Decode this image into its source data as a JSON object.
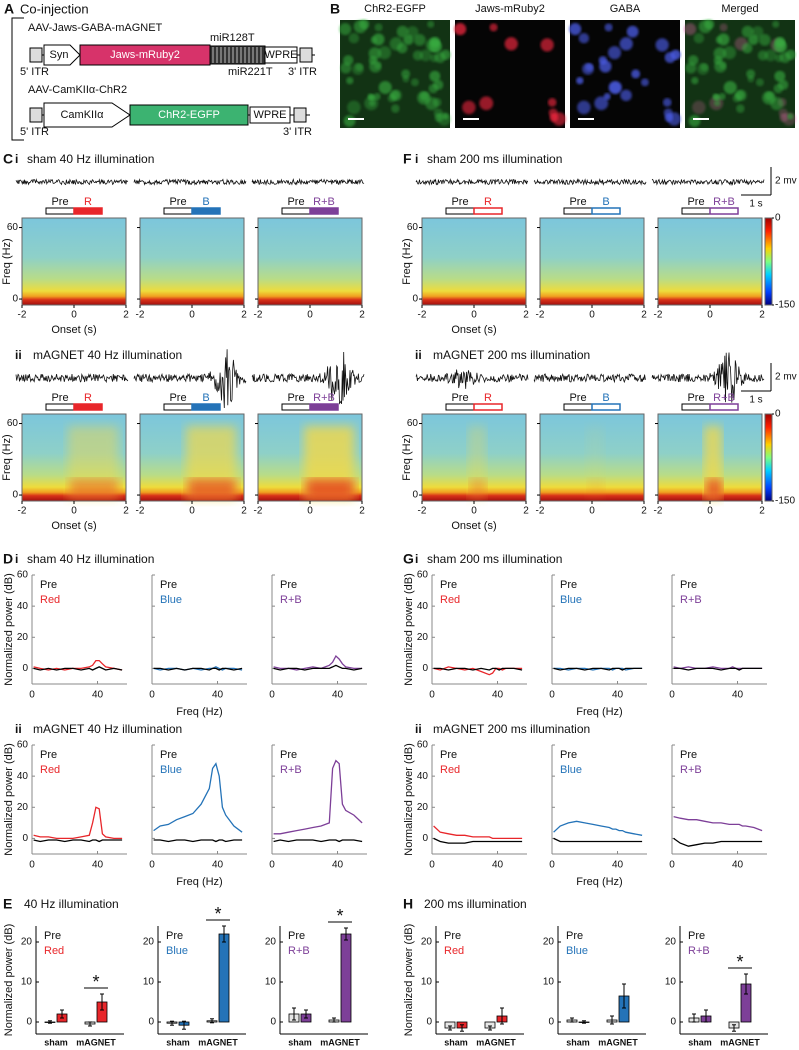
{
  "panel_a": {
    "letter": "A",
    "title": "Co-injection",
    "construct_1": {
      "name": "AAV-Jaws-GABA-mAGNET",
      "promoter": "Syn",
      "gene": "Jaws-mRuby2",
      "target_1": "miR128T",
      "target_2": "miR221T",
      "wpre": "WPRE",
      "itr_5": "5' ITR",
      "itr_3": "3' ITR"
    },
    "construct_2": {
      "name": "AAV-CamKIIα-ChR2",
      "promoter": "CamKIIα",
      "gene": "ChR2-EGFP",
      "wpre": "WPRE",
      "itr_5": "5' ITR",
      "itr_3": "3' ITR"
    }
  },
  "panel_b": {
    "letter": "B",
    "channels": [
      {
        "label": "ChR2-EGFP",
        "color": "#3fbf4a"
      },
      {
        "label": "Jaws-mRuby2",
        "color": "#e8263c"
      },
      {
        "label": "GABA",
        "color": "#4a5ae0"
      },
      {
        "label": "Merged",
        "color": "#3fbf4a"
      }
    ]
  },
  "spectro": [
    {
      "letter": "C",
      "stim_filled": true,
      "ylabel": "Freq (Hz)",
      "xlabel": "Onset (s)",
      "xlim": [
        -2,
        2
      ],
      "ylim": [
        -5,
        68
      ],
      "xticks": [
        -2,
        0,
        2
      ],
      "yticks": [
        0,
        60
      ],
      "rows": [
        {
          "roman": "i",
          "title": "sham 40 Hz illumination",
          "plots": [
            {
              "pre": "Pre",
              "stim": "R",
              "color": "#e8262a"
            },
            {
              "pre": "Pre",
              "stim": "B",
              "color": "#2473b8"
            },
            {
              "pre": "Pre",
              "stim": "R+B",
              "color": "#7d3f98"
            }
          ]
        },
        {
          "roman": "ii",
          "title": "mAGNET 40 Hz illumination",
          "plots": [
            {
              "pre": "Pre",
              "stim": "R",
              "color": "#e8262a"
            },
            {
              "pre": "Pre",
              "stim": "B",
              "color": "#2473b8"
            },
            {
              "pre": "Pre",
              "stim": "R+B",
              "color": "#7d3f98"
            }
          ]
        }
      ]
    },
    {
      "letter": "F",
      "stim_filled": false,
      "ylabel": "Freq (Hz)",
      "xlabel": "Onset (s)",
      "xlim": [
        -2,
        2
      ],
      "ylim": [
        -5,
        68
      ],
      "xticks": [
        -2,
        0,
        2
      ],
      "yticks": [
        0,
        60
      ],
      "scale_bar": {
        "amplitude": "2 mv",
        "time": "1 s"
      },
      "colorbar": {
        "range": [
          -150,
          0
        ],
        "ticks": [
          0,
          -150
        ]
      },
      "rows": [
        {
          "roman": "i",
          "title": "sham 200 ms illumination",
          "plots": [
            {
              "pre": "Pre",
              "stim": "R",
              "color": "#e8262a"
            },
            {
              "pre": "Pre",
              "stim": "B",
              "color": "#2473b8"
            },
            {
              "pre": "Pre",
              "stim": "R+B",
              "color": "#7d3f98"
            }
          ]
        },
        {
          "roman": "ii",
          "title": "mAGNET 200 ms illumination",
          "plots": [
            {
              "pre": "Pre",
              "stim": "R",
              "color": "#e8262a"
            },
            {
              "pre": "Pre",
              "stim": "B",
              "color": "#2473b8"
            },
            {
              "pre": "Pre",
              "stim": "R+B",
              "color": "#7d3f98"
            }
          ]
        }
      ]
    }
  ],
  "power": [
    {
      "letter": "D",
      "x": [
        1,
        5,
        10,
        15,
        20,
        25,
        30,
        35,
        37,
        39,
        41,
        43,
        45,
        50,
        55
      ],
      "xlim": [
        0,
        58
      ],
      "ylim": [
        -10,
        60
      ],
      "xticks": [
        0,
        40
      ],
      "yticks": [
        0,
        20,
        40,
        60
      ],
      "ylabel": "Normalized power (dB)",
      "xlabel": "Freq (Hz)",
      "pre_color": "#000000",
      "rows": [
        {
          "roman": "i",
          "title": "sham 40 Hz illumination",
          "plots": [
            {
              "pre_label": "Pre",
              "label": "Red",
              "color": "#e8262a",
              "pre": [
                0,
                -1,
                0,
                -1,
                0,
                0,
                -1,
                0,
                -1,
                0,
                1,
                0,
                -1,
                0,
                -1
              ],
              "values": [
                1,
                0,
                -1,
                0,
                -1,
                0,
                0,
                1,
                2,
                5,
                5,
                3,
                1,
                0,
                -1
              ]
            },
            {
              "pre_label": "Pre",
              "label": "Blue",
              "color": "#2473b8",
              "pre": [
                0,
                0,
                -1,
                0,
                -1,
                0,
                0,
                -1,
                0,
                0,
                -1,
                0,
                0,
                -1,
                0
              ],
              "values": [
                0,
                -1,
                0,
                0,
                -1,
                0,
                -1,
                0,
                0,
                1,
                0,
                -1,
                0,
                0,
                -1
              ]
            },
            {
              "pre_label": "Pre",
              "label": "R+B",
              "color": "#7d3f98",
              "pre": [
                0,
                -1,
                0,
                0,
                -1,
                0,
                0,
                0,
                1,
                2,
                1,
                0,
                0,
                -1,
                0
              ],
              "values": [
                1,
                0,
                0,
                -1,
                0,
                1,
                0,
                2,
                4,
                8,
                6,
                3,
                1,
                0,
                0
              ]
            }
          ]
        },
        {
          "roman": "ii",
          "title": "mAGNET 40 Hz illumination",
          "plots": [
            {
              "pre_label": "Pre",
              "label": "Red",
              "color": "#e8262a",
              "pre": [
                -1,
                -2,
                -1,
                -1,
                -2,
                -1,
                -1,
                -2,
                -1,
                -1,
                -2,
                -1,
                -1,
                -1,
                -1
              ],
              "values": [
                2,
                1,
                1,
                0,
                0,
                0,
                1,
                2,
                10,
                20,
                19,
                3,
                1,
                0,
                0
              ]
            },
            {
              "pre_label": "Pre",
              "label": "Blue",
              "color": "#2473b8",
              "pre": [
                -1,
                -1,
                -2,
                -1,
                -1,
                -2,
                -1,
                -1,
                -1,
                -2,
                -1,
                -1,
                -2,
                -1,
                -1
              ],
              "values": [
                5,
                8,
                9,
                12,
                14,
                16,
                22,
                32,
                45,
                48,
                40,
                20,
                15,
                8,
                4
              ]
            },
            {
              "pre_label": "Pre",
              "label": "R+B",
              "color": "#7d3f98",
              "pre": [
                -2,
                -1,
                -2,
                -1,
                -1,
                -1,
                -2,
                -1,
                -1,
                -1,
                -2,
                -1,
                -1,
                -1,
                -2
              ],
              "values": [
                3,
                3,
                4,
                5,
                6,
                7,
                8,
                10,
                45,
                50,
                48,
                22,
                18,
                15,
                10
              ]
            }
          ]
        }
      ]
    },
    {
      "letter": "G",
      "x": [
        1,
        5,
        10,
        15,
        20,
        25,
        30,
        35,
        37,
        39,
        41,
        43,
        45,
        50,
        55
      ],
      "xlim": [
        0,
        58
      ],
      "ylim": [
        -10,
        60
      ],
      "xticks": [
        0,
        40
      ],
      "yticks": [
        0,
        20,
        40,
        60
      ],
      "ylabel": "Normalized power (dB)",
      "xlabel": "Freq (Hz)",
      "pre_color": "#000000",
      "rows": [
        {
          "roman": "i",
          "title": "sham 200 ms illumination",
          "plots": [
            {
              "pre_label": "Pre",
              "label": "Red",
              "color": "#e8262a",
              "pre": [
                0,
                0,
                -1,
                0,
                0,
                -1,
                0,
                -1,
                0,
                0,
                -1,
                0,
                0,
                0,
                -1
              ],
              "values": [
                0,
                -1,
                1,
                0,
                -1,
                0,
                -2,
                -4,
                -3,
                0,
                0,
                -1,
                0,
                0,
                0
              ]
            },
            {
              "pre_label": "Pre",
              "label": "Blue",
              "color": "#2473b8",
              "pre": [
                0,
                -1,
                0,
                0,
                -1,
                0,
                0,
                -1,
                0,
                0,
                0,
                -1,
                0,
                0,
                0
              ],
              "values": [
                0,
                0,
                -1,
                0,
                0,
                -1,
                0,
                0,
                -1,
                0,
                0,
                0,
                -1,
                0,
                0
              ]
            },
            {
              "pre_label": "Pre",
              "label": "R+B",
              "color": "#7d3f98",
              "pre": [
                0,
                0,
                -1,
                0,
                0,
                0,
                -1,
                0,
                0,
                0,
                -1,
                0,
                0,
                0,
                0
              ],
              "values": [
                1,
                0,
                1,
                0,
                0,
                1,
                0,
                0,
                1,
                0,
                0,
                0,
                0,
                0,
                0
              ]
            }
          ]
        },
        {
          "roman": "ii",
          "title": "mAGNET 200 ms illumination",
          "plots": [
            {
              "pre_label": "Pre",
              "label": "Red",
              "color": "#e8262a",
              "pre": [
                0,
                -2,
                -3,
                -3,
                -3,
                -2,
                -2,
                -2,
                -2,
                -2,
                -2,
                -2,
                -2,
                -2,
                -2
              ],
              "values": [
                8,
                4,
                3,
                2,
                2,
                1,
                1,
                1,
                0,
                0,
                0,
                0,
                0,
                0,
                0
              ]
            },
            {
              "pre_label": "Pre",
              "label": "Blue",
              "color": "#2473b8",
              "pre": [
                0,
                -2,
                -2,
                -2,
                -2,
                -2,
                -2,
                -2,
                -2,
                -2,
                -2,
                -2,
                -2,
                -2,
                -2
              ],
              "values": [
                4,
                8,
                10,
                11,
                10,
                9,
                8,
                7,
                6,
                6,
                5,
                5,
                4,
                3,
                2
              ]
            },
            {
              "pre_label": "Pre",
              "label": "R+B",
              "color": "#7d3f98",
              "pre": [
                0,
                -3,
                -5,
                -4,
                -3,
                -3,
                -2,
                -2,
                -2,
                -2,
                -2,
                -2,
                -2,
                -2,
                -2
              ],
              "values": [
                14,
                13,
                12,
                12,
                11,
                10,
                10,
                9,
                9,
                9,
                9,
                8,
                8,
                7,
                5
              ]
            }
          ]
        }
      ]
    }
  ],
  "bars": [
    {
      "letter": "E",
      "title": "40 Hz illumination",
      "ylabel": "Normalized power (dB)",
      "categories": [
        "sham",
        "mAGNET"
      ],
      "ylim": [
        -3,
        24
      ],
      "yticks": [
        0,
        10,
        20
      ],
      "pre_color": "#e6e6e6",
      "plots": [
        {
          "pre_label": "Pre",
          "label": "Red",
          "color": "#e8262a",
          "pre": [
            0,
            -0.5
          ],
          "pre_err": [
            0.3,
            0.5
          ],
          "values": [
            2,
            5
          ],
          "err": [
            1,
            2
          ],
          "star": "*"
        },
        {
          "pre_label": "Pre",
          "label": "Blue",
          "color": "#2473b8",
          "pre": [
            -0.3,
            0.3
          ],
          "pre_err": [
            0.5,
            0.5
          ],
          "values": [
            -0.8,
            22
          ],
          "err": [
            1,
            2
          ],
          "star": "*"
        },
        {
          "pre_label": "Pre",
          "label": "R+B",
          "color": "#7d3f98",
          "pre": [
            2,
            0.5
          ],
          "pre_err": [
            1.5,
            0.5
          ],
          "values": [
            2,
            22
          ],
          "err": [
            1,
            1.5
          ],
          "star": "*"
        }
      ]
    },
    {
      "letter": "H",
      "title": "200 ms illumination",
      "ylabel": "Normalized power (dB)",
      "categories": [
        "sham",
        "mAGNET"
      ],
      "ylim": [
        -3,
        24
      ],
      "yticks": [
        0,
        10,
        20
      ],
      "pre_color": "#e6e6e6",
      "plots": [
        {
          "pre_label": "Pre",
          "label": "Red",
          "color": "#e8262a",
          "pre": [
            -1.5,
            -1.5
          ],
          "pre_err": [
            0.5,
            0.5
          ],
          "values": [
            -1.5,
            1.5
          ],
          "err": [
            0.8,
            2
          ]
        },
        {
          "pre_label": "Pre",
          "label": "Blue",
          "color": "#2473b8",
          "pre": [
            0.5,
            0.5
          ],
          "pre_err": [
            0.5,
            1
          ],
          "values": [
            0,
            6.5
          ],
          "err": [
            0.3,
            3
          ]
        },
        {
          "pre_label": "Pre",
          "label": "R+B",
          "color": "#7d3f98",
          "pre": [
            1,
            -1.5
          ],
          "pre_err": [
            1,
            0.8
          ],
          "values": [
            1.5,
            9.5
          ],
          "err": [
            1.5,
            2.5
          ],
          "star": "*"
        }
      ]
    }
  ]
}
